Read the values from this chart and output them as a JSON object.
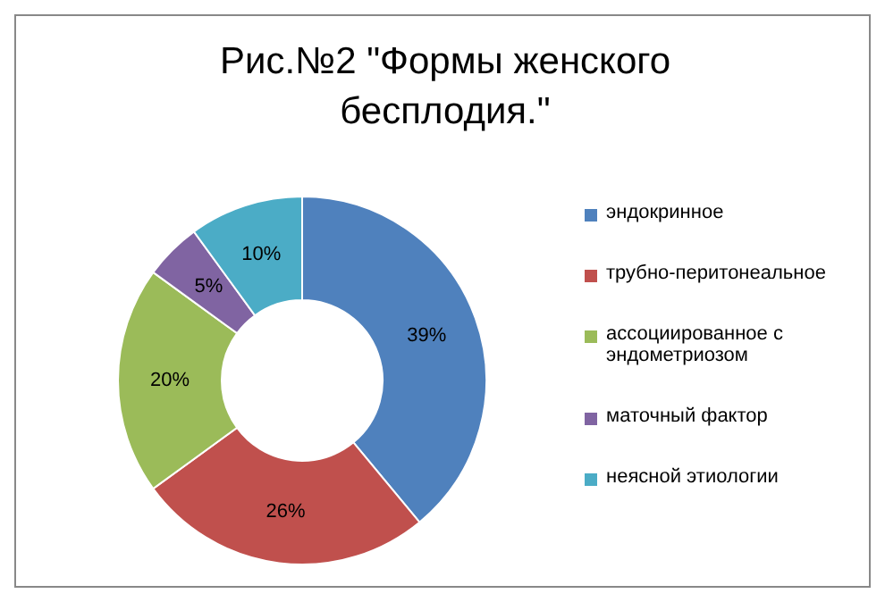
{
  "chart_data": {
    "type": "donut",
    "title": "Рис.№2 \"Формы женского бесплодия.\"",
    "categories": [
      "эндокринное",
      "трубно-перитонеальное",
      "ассоциированное с эндометриозом",
      "маточный фактор",
      "неясной этиологии"
    ],
    "values": [
      39,
      26,
      20,
      5,
      10
    ],
    "value_labels": [
      "39%",
      "26%",
      "20%",
      "5%",
      "10%"
    ],
    "colors": [
      "#4f81bd",
      "#c0504d",
      "#9bbb59",
      "#8064a2",
      "#4bacc6"
    ],
    "legend": "right"
  }
}
